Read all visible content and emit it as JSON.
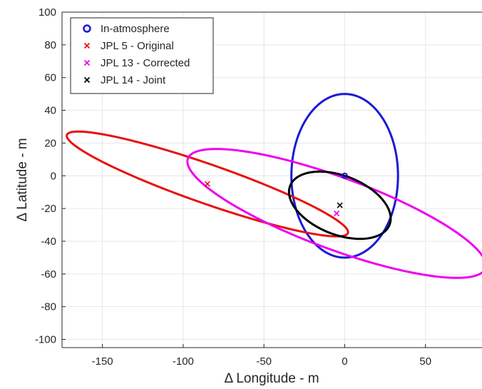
{
  "chart_data": {
    "type": "scatter",
    "xlabel": "Δ Longitude - m",
    "ylabel": "Δ Latitude - m",
    "xlim": [
      -175,
      85
    ],
    "ylim": [
      -105,
      100
    ],
    "xticks": [
      -150,
      -100,
      -50,
      0,
      50
    ],
    "yticks": [
      -100,
      -80,
      -60,
      -40,
      -20,
      0,
      20,
      40,
      60,
      80,
      100
    ],
    "grid": true,
    "legend_position": "top-left",
    "series": [
      {
        "name": "In-atmosphere",
        "marker": "o",
        "color": "#1a1ad6",
        "point": {
          "x": 0,
          "y": 0
        },
        "ellipse": {
          "cx": 0,
          "cy": 0,
          "a": 33,
          "b": 50,
          "angle_deg": 0
        }
      },
      {
        "name": "JPL 5 - Original",
        "marker": "x",
        "color": "#e81010",
        "point": {
          "x": -85,
          "y": -5
        },
        "ellipse": {
          "cx": -85,
          "cy": -5,
          "a": 92,
          "b": 12,
          "angle_deg": -19
        }
      },
      {
        "name": "JPL 13 - Corrected",
        "marker": "x",
        "color": "#ee00ee",
        "point": {
          "x": -5,
          "y": -23
        },
        "ellipse": {
          "cx": -5,
          "cy": -23,
          "a": 98,
          "b": 22,
          "angle_deg": -20
        }
      },
      {
        "name": "JPL 14 - Joint",
        "marker": "x",
        "color": "#000000",
        "point": {
          "x": -3,
          "y": -18
        },
        "ellipse": {
          "cx": -3,
          "cy": -18,
          "a": 33,
          "b": 18,
          "angle_deg": -21
        }
      }
    ]
  }
}
